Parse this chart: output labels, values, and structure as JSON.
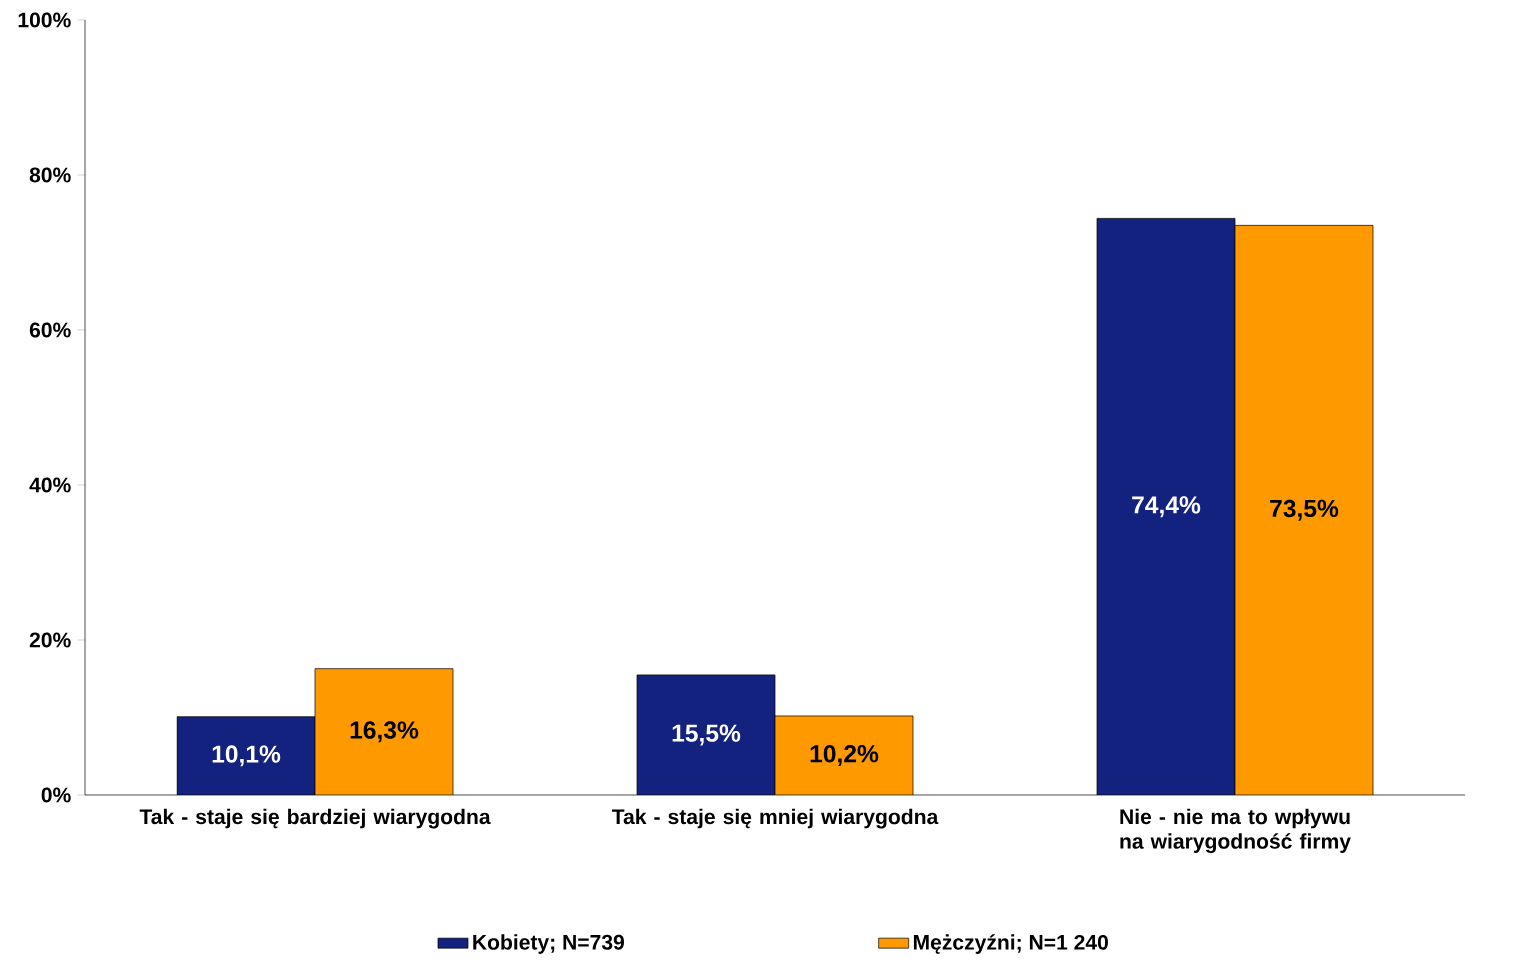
{
  "chart_data": {
    "type": "bar",
    "categories": [
      "Tak - staje się bardziej wiarygodna",
      "Tak - staje się mniej wiarygodna",
      "Nie - nie ma to wpływu na wiarygodność firmy"
    ],
    "series": [
      {
        "name": "Kobiety; N=739",
        "color": "#13217f",
        "values": [
          10.1,
          15.5,
          74.4
        ],
        "value_labels": [
          "10,1%",
          "15,5%",
          "74,4%"
        ]
      },
      {
        "name": "Mężczyźni; N=1 240",
        "color": "#ff9900",
        "values": [
          16.3,
          10.2,
          73.5
        ],
        "value_labels": [
          "16,3%",
          "10,2%",
          "73,5%"
        ]
      }
    ],
    "ylim": [
      0,
      100
    ],
    "yticks": [
      {
        "value": 0,
        "label": "0%"
      },
      {
        "value": 20,
        "label": "20%"
      },
      {
        "value": 40,
        "label": "40%"
      },
      {
        "value": 60,
        "label": "60%"
      },
      {
        "value": 80,
        "label": "80%"
      },
      {
        "value": 100,
        "label": "100%"
      }
    ],
    "legend": "bottom"
  }
}
